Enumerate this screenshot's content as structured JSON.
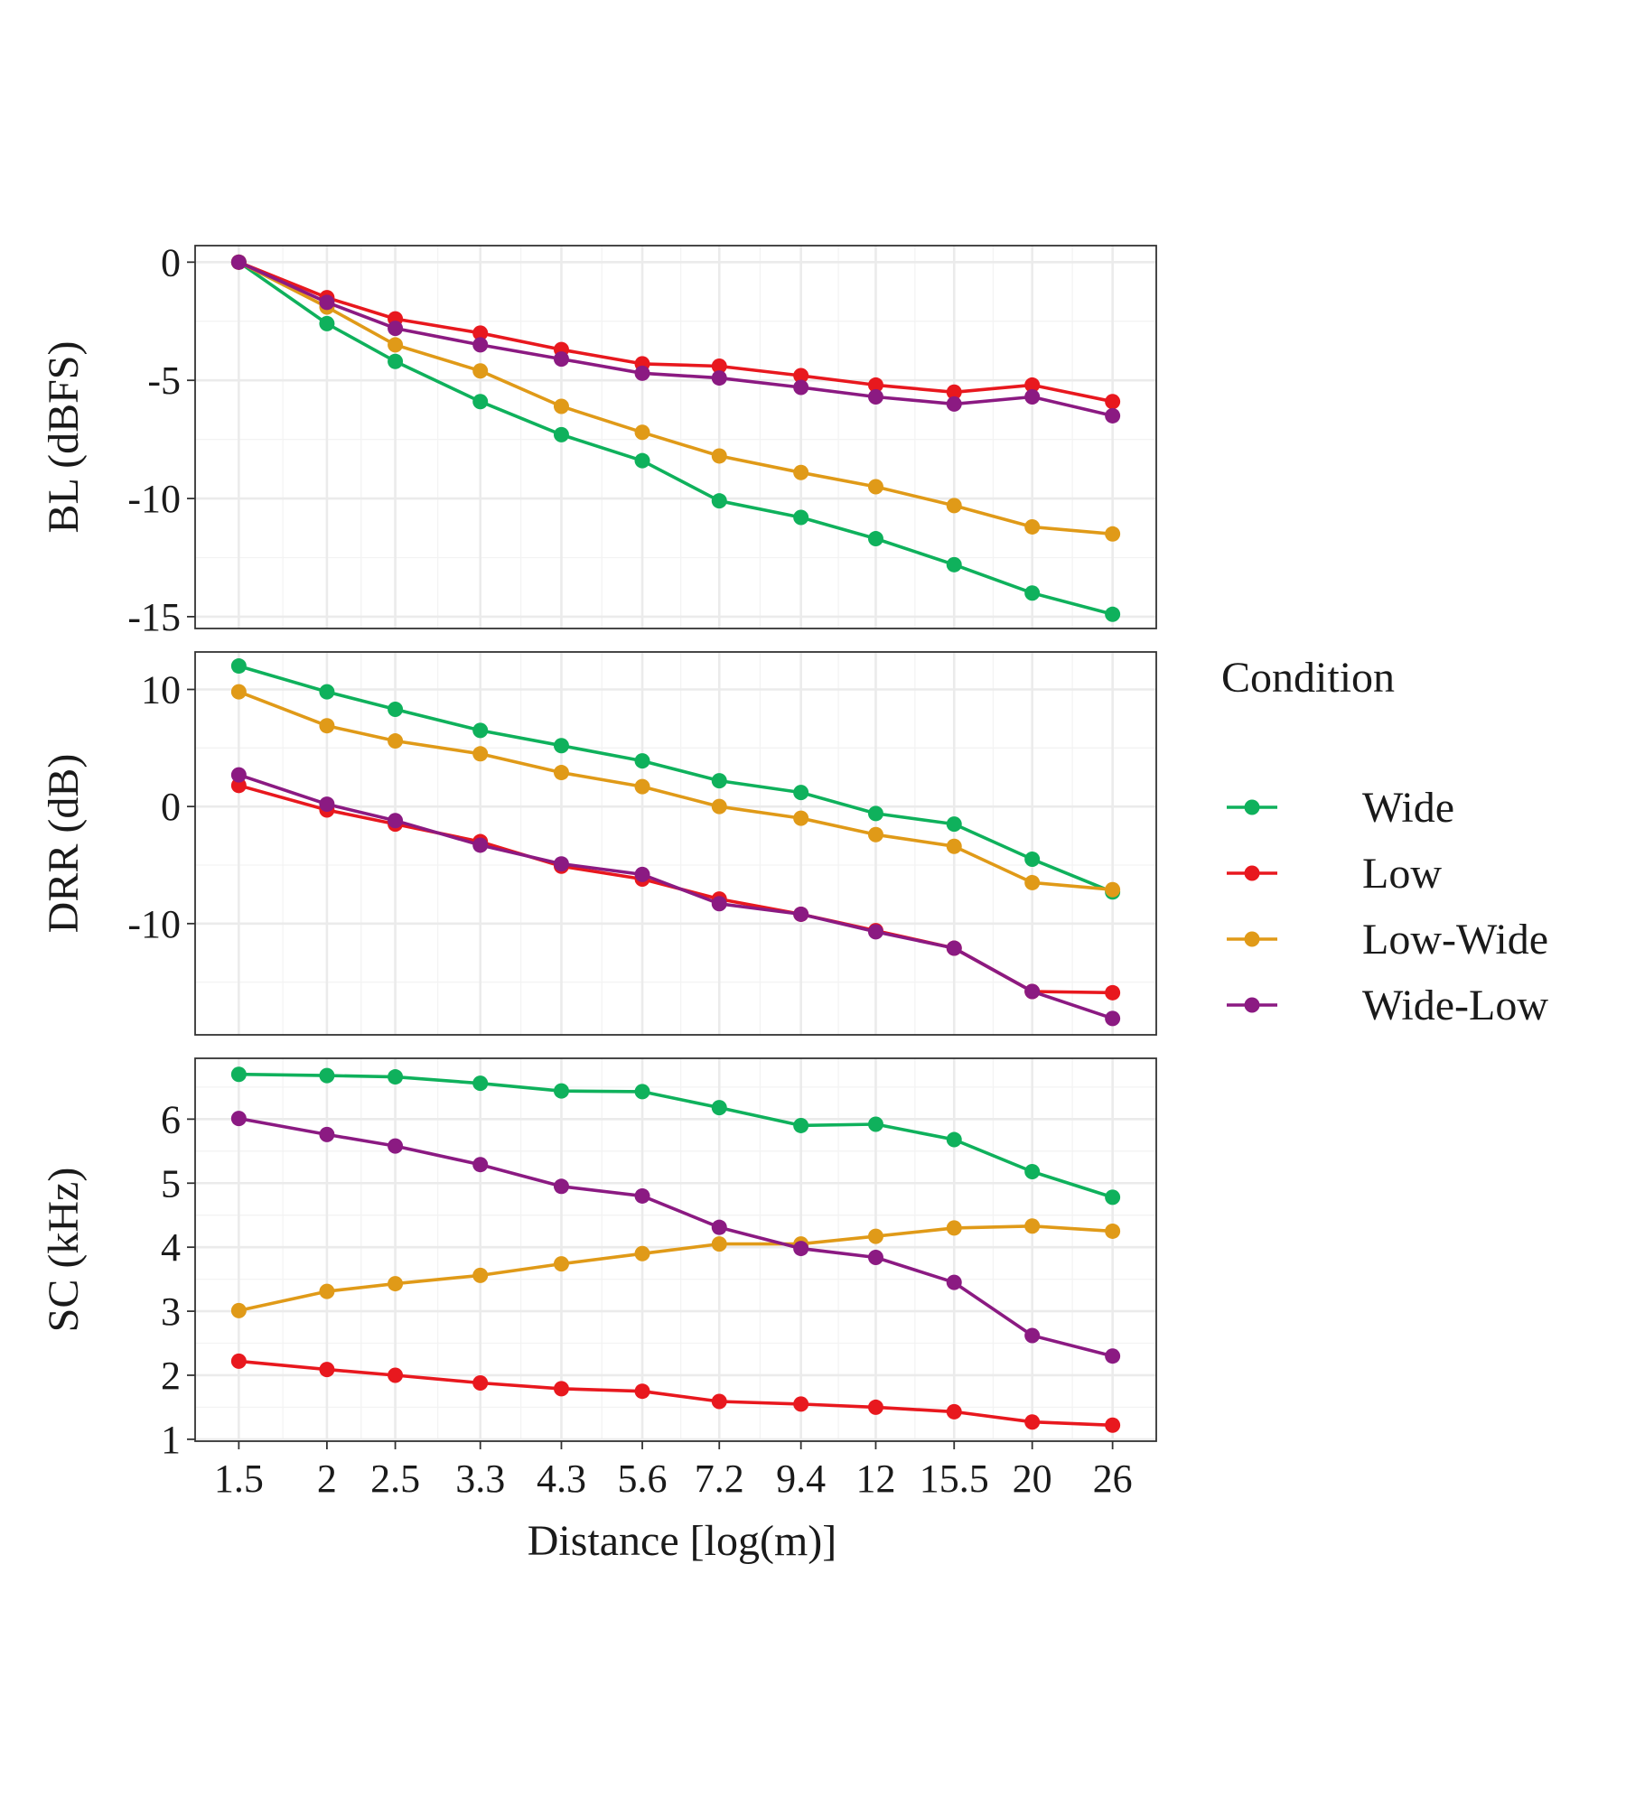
{
  "chart_data": {
    "type": "line",
    "xlabel": "Distance [log(m)]",
    "x_scale": "log",
    "categories": [
      "1.5",
      "2",
      "2.5",
      "3.3",
      "4.3",
      "5.6",
      "7.2",
      "9.4",
      "12",
      "15.5",
      "20",
      "26"
    ],
    "x": [
      1.5,
      2,
      2.5,
      3.3,
      4.3,
      5.6,
      7.2,
      9.4,
      12,
      15.5,
      20,
      26
    ],
    "grid": true,
    "legend": {
      "title": "Condition",
      "placement": "right",
      "entries": [
        "Wide",
        "Low",
        "Low-Wide",
        "Wide-Low"
      ]
    },
    "colors": {
      "Wide": "#0fb15c",
      "Low": "#e8181e",
      "Low-Wide": "#e09a18",
      "Wide-Low": "#8b1a82"
    },
    "panels": [
      {
        "ylabel": "BL (dBFS)",
        "ylim": [
          -15.5,
          0.7
        ],
        "yticks": [
          0,
          -5,
          -10,
          -15
        ],
        "yticklabels": [
          "0",
          "-5",
          "-10",
          "-15"
        ],
        "series": [
          {
            "name": "Wide",
            "values": [
              0,
              -2.6,
              -4.2,
              -5.9,
              -7.3,
              -8.4,
              -10.1,
              -10.8,
              -11.7,
              -12.8,
              -14.0,
              -14.9
            ]
          },
          {
            "name": "Low",
            "values": [
              0,
              -1.5,
              -2.4,
              -3.0,
              -3.7,
              -4.3,
              -4.4,
              -4.8,
              -5.2,
              -5.5,
              -5.2,
              -5.9
            ]
          },
          {
            "name": "Low-Wide",
            "values": [
              0,
              -1.9,
              -3.5,
              -4.6,
              -6.1,
              -7.2,
              -8.2,
              -8.9,
              -9.5,
              -10.3,
              -11.2,
              -11.5
            ]
          },
          {
            "name": "Wide-Low",
            "values": [
              0,
              -1.7,
              -2.8,
              -3.5,
              -4.1,
              -4.7,
              -4.9,
              -5.3,
              -5.7,
              -6.0,
              -5.7,
              -6.5
            ]
          }
        ]
      },
      {
        "ylabel": "DRR (dB)",
        "ylim": [
          -19.5,
          13.2
        ],
        "yticks": [
          10,
          0,
          -10
        ],
        "yticklabels": [
          "10",
          "0",
          "-10"
        ],
        "series": [
          {
            "name": "Wide",
            "values": [
              12.0,
              9.8,
              8.3,
              6.5,
              5.2,
              3.9,
              2.2,
              1.2,
              -0.6,
              -1.5,
              -4.5,
              -7.3
            ]
          },
          {
            "name": "Low",
            "values": [
              1.8,
              -0.3,
              -1.5,
              -3.0,
              -5.1,
              -6.2,
              -7.9,
              -9.2,
              -10.6,
              -12.1,
              -15.8,
              -15.9
            ]
          },
          {
            "name": "Low-Wide",
            "values": [
              9.8,
              6.9,
              5.6,
              4.5,
              2.9,
              1.7,
              0.0,
              -1.0,
              -2.4,
              -3.4,
              -6.5,
              -7.1
            ]
          },
          {
            "name": "Wide-Low",
            "values": [
              2.7,
              0.2,
              -1.2,
              -3.3,
              -4.9,
              -5.8,
              -8.3,
              -9.2,
              -10.7,
              -12.1,
              -15.8,
              -18.1
            ]
          }
        ]
      },
      {
        "ylabel": "SC (kHz)",
        "ylim": [
          0.97,
          6.95
        ],
        "yticks": [
          1,
          2,
          3,
          4,
          5,
          6
        ],
        "yticklabels": [
          "1",
          "2",
          "3",
          "4",
          "5",
          "6"
        ],
        "series": [
          {
            "name": "Wide",
            "values": [
              6.7,
              6.68,
              6.66,
              6.56,
              6.44,
              6.43,
              6.18,
              5.9,
              5.92,
              5.68,
              5.18,
              4.78
            ]
          },
          {
            "name": "Low",
            "values": [
              2.22,
              2.09,
              2.0,
              1.88,
              1.79,
              1.75,
              1.59,
              1.55,
              1.5,
              1.43,
              1.27,
              1.22
            ]
          },
          {
            "name": "Low-Wide",
            "values": [
              3.01,
              3.31,
              3.43,
              3.56,
              3.74,
              3.9,
              4.05,
              4.05,
              4.17,
              4.3,
              4.33,
              4.25
            ]
          },
          {
            "name": "Wide-Low",
            "values": [
              6.01,
              5.76,
              5.58,
              5.29,
              4.95,
              4.8,
              4.31,
              3.98,
              3.84,
              3.45,
              2.62,
              2.3
            ]
          }
        ]
      }
    ]
  }
}
